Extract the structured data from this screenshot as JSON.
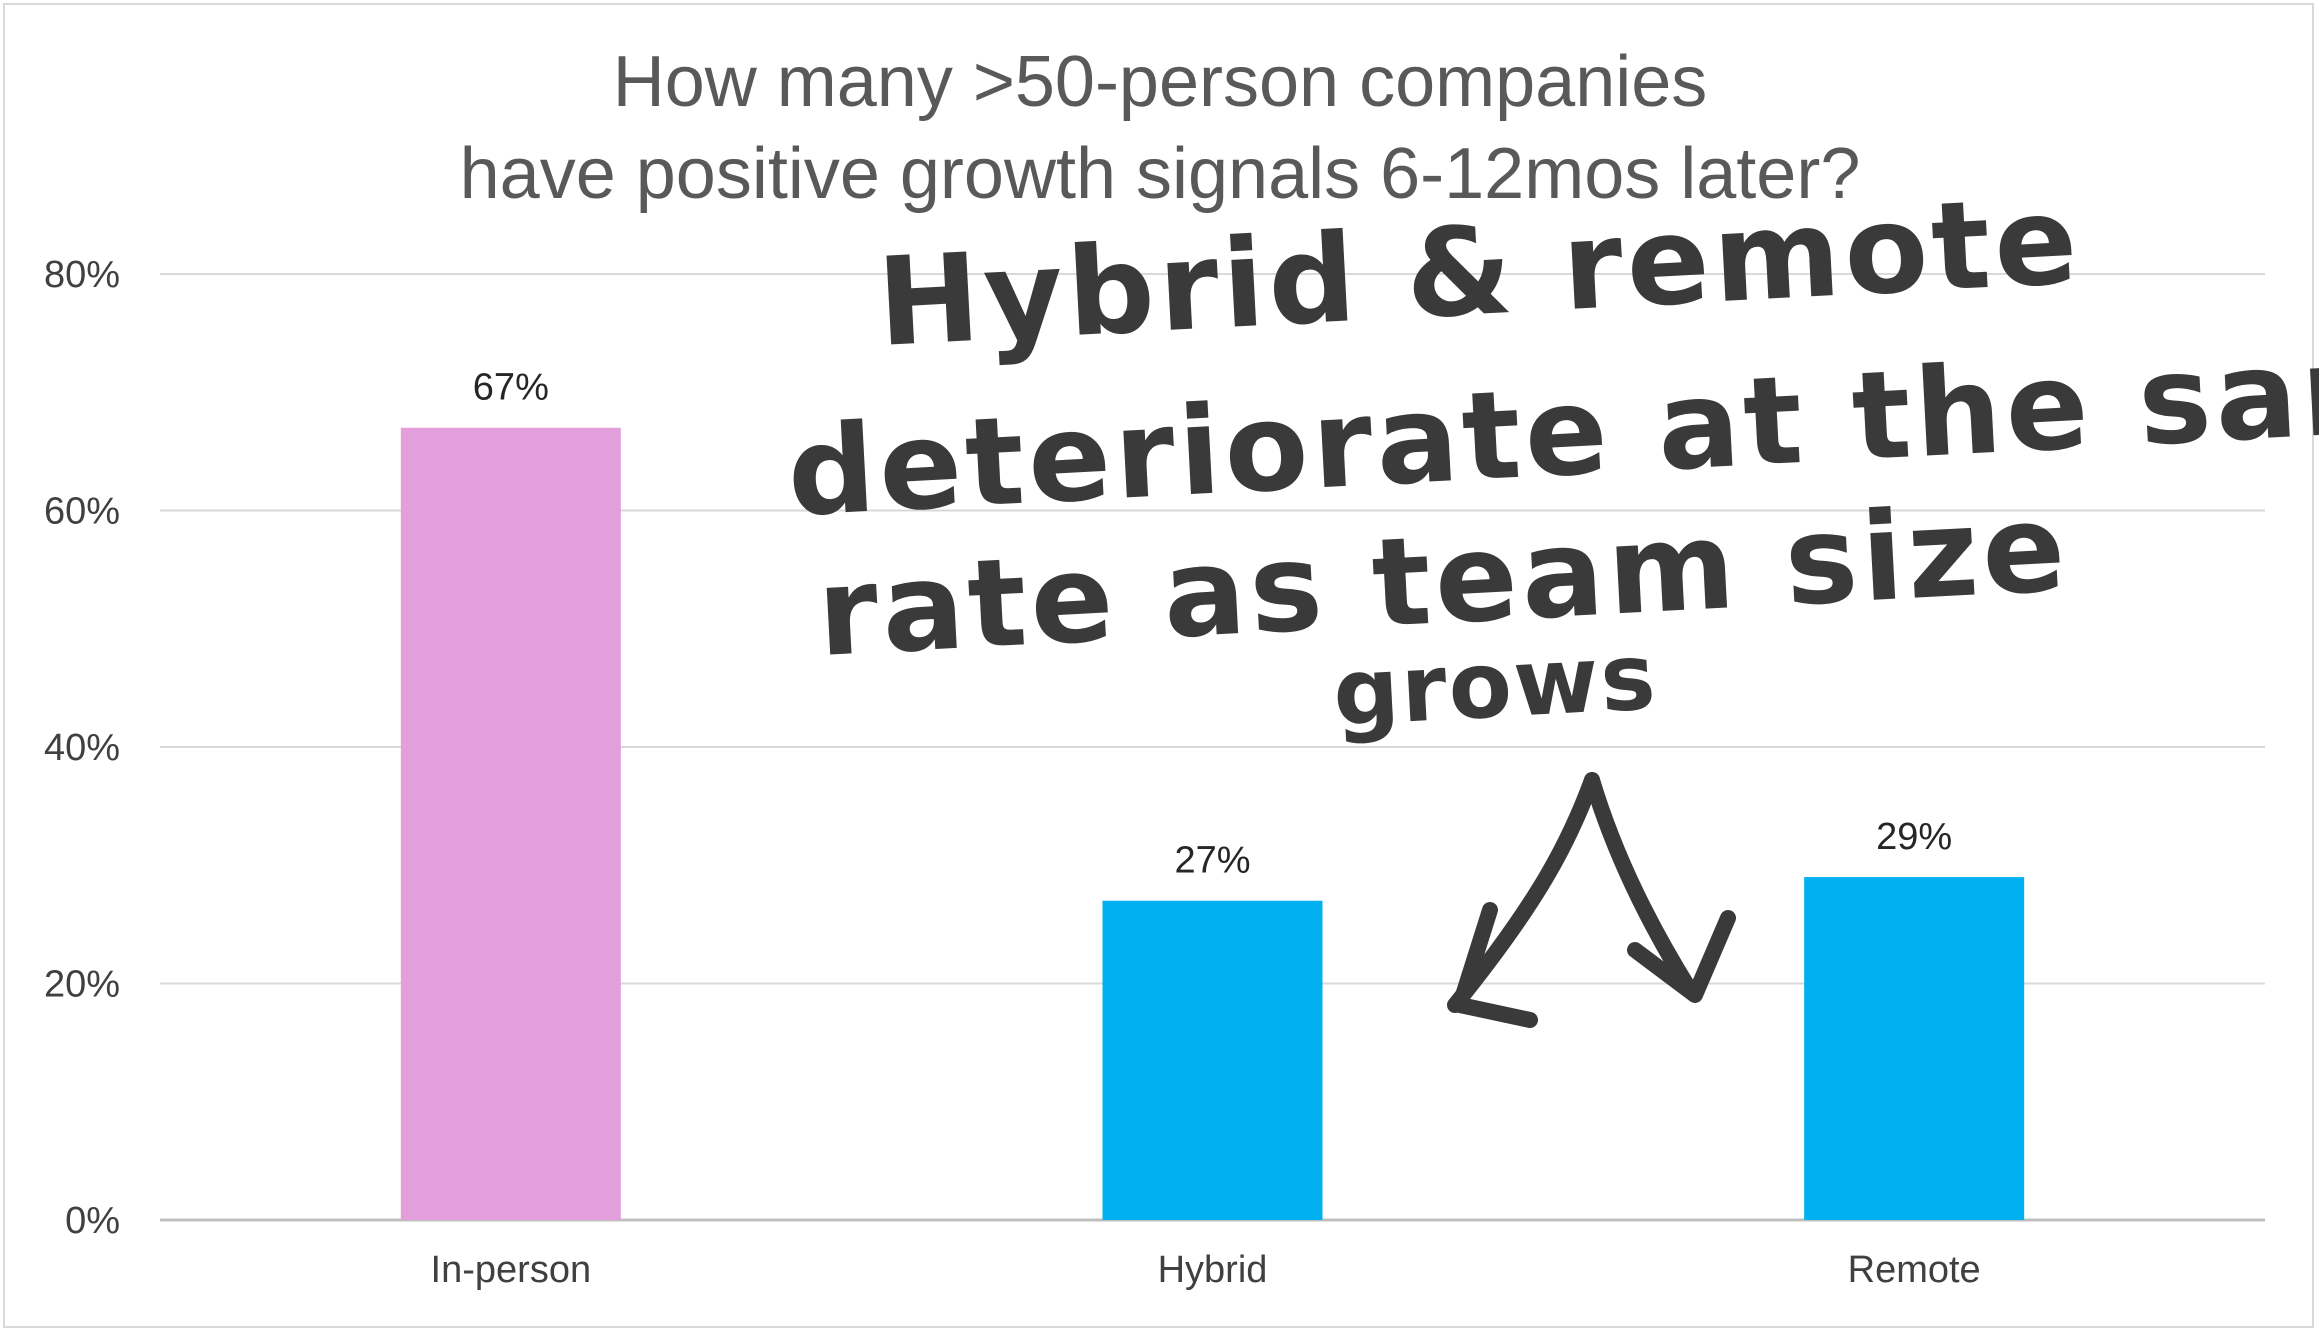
{
  "chart_data": {
    "type": "bar",
    "title": "How many >50-person companies have positive growth signals 6-12mos later?",
    "title_lines": [
      "How many >50-person companies",
      "have positive growth signals 6-12mos later?"
    ],
    "categories": [
      "In-person",
      "Hybrid",
      "Remote"
    ],
    "values": [
      67,
      27,
      29
    ],
    "data_labels": [
      "67%",
      "27%",
      "29%"
    ],
    "bar_colors": [
      "#e39fdc",
      "#00b0f0",
      "#00b0f0"
    ],
    "ylim": [
      0,
      80
    ],
    "y_ticks": [
      {
        "value": 0,
        "label": "0%"
      },
      {
        "value": 20,
        "label": "20%"
      },
      {
        "value": 40,
        "label": "40%"
      },
      {
        "value": 60,
        "label": "60%"
      },
      {
        "value": 80,
        "label": "80%"
      }
    ],
    "grid": true,
    "legend": "none",
    "xlabel": "",
    "ylabel": "",
    "annotation": {
      "lines": [
        "Hybrid & remote",
        "deteriorate at the same",
        "rate as team size",
        "grows"
      ],
      "style": "handwritten",
      "color": "#3a3a3a",
      "arrows": "two arrows pointing down to Hybrid and Remote bars"
    }
  },
  "colors": {
    "gridline": "#d9d9d9",
    "axis": "#bfbfbf",
    "title": "#595959",
    "tick": "#404040",
    "ink": "#3a3a3a"
  }
}
